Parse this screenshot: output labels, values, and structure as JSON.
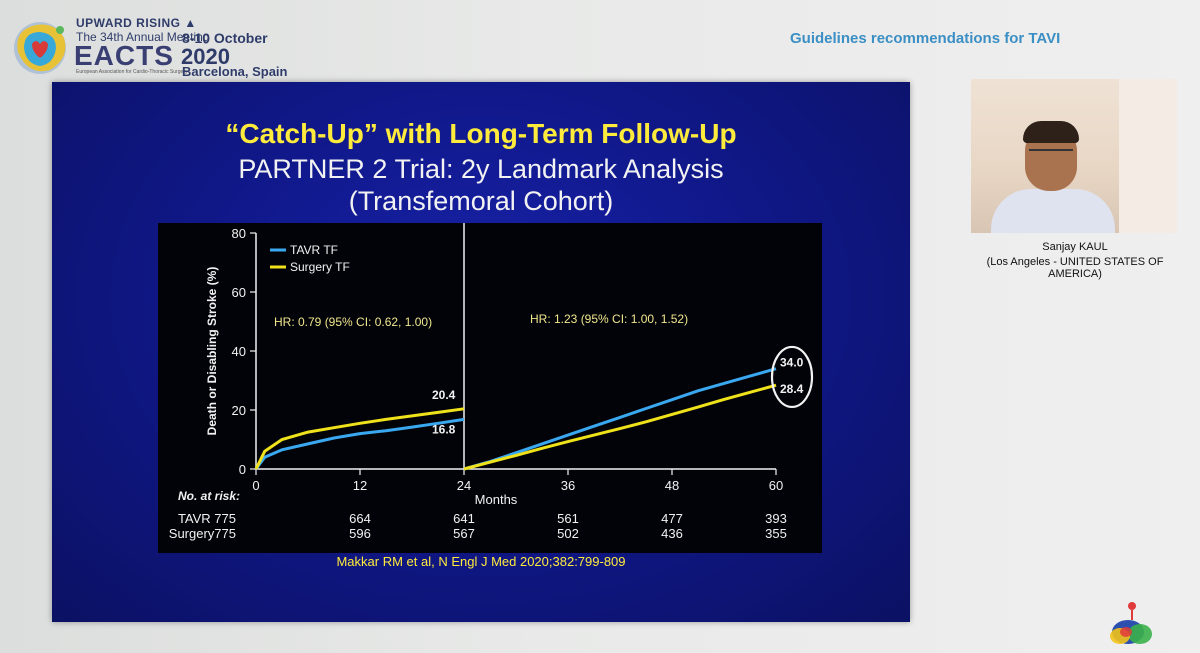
{
  "header": {
    "upward_rising": "UPWARD RISING ▲",
    "meeting": "The 34th Annual Meeting",
    "org": "EACTS",
    "org_full": "European Association for Cardio-Thoracic Surgery",
    "dates": "8-10 October",
    "year": "2020",
    "location": "Barcelona, Spain",
    "session_title": "Guidelines recommendations for TAVI"
  },
  "slide": {
    "title_line1": "“Catch-Up” with Long-Term Follow-Up",
    "title_line2": "PARTNER 2 Trial: 2y Landmark Analysis",
    "title_line3": "(Transfemoral Cohort)",
    "citation": "Makkar RM et al, N Engl J Med 2020;382:799-809"
  },
  "speaker": {
    "name": "Sanjay KAUL",
    "affiliation": "(Los Angeles - UNITED STATES OF AMERICA)"
  },
  "colors": {
    "tavr": "#3aa8f0",
    "surgery": "#f0e21a",
    "slide_title": "#ffeb3b"
  },
  "chart_data": {
    "type": "line",
    "ylabel": "Death or Disabling Stroke (%)",
    "xlabel": "Months",
    "ylim": [
      0,
      80
    ],
    "xlim": [
      0,
      60
    ],
    "y_ticks": [
      "0",
      "20",
      "40",
      "60",
      "80"
    ],
    "x_ticks": [
      "0",
      "12",
      "24",
      "36",
      "48",
      "60"
    ],
    "landmark_month": 24,
    "legend_placement": "top-left",
    "series": [
      {
        "name": "TAVR TF",
        "color": "#3aa8f0",
        "segment1": {
          "x": [
            0,
            1,
            3,
            6,
            9,
            12,
            15,
            18,
            21,
            24
          ],
          "y": [
            0,
            4,
            6.5,
            8.5,
            10.5,
            12,
            13,
            14.2,
            15.5,
            16.8
          ]
        },
        "segment2": {
          "x": [
            24,
            27,
            30,
            33,
            36,
            39,
            42,
            45,
            48,
            51,
            54,
            57,
            60
          ],
          "y": [
            0,
            2.5,
            5.5,
            8.5,
            11.5,
            14.5,
            17.5,
            20.5,
            23.5,
            26.5,
            29,
            31.5,
            34.0
          ]
        }
      },
      {
        "name": "Surgery TF",
        "color": "#f0e21a",
        "segment1": {
          "x": [
            0,
            1,
            3,
            6,
            9,
            12,
            15,
            18,
            21,
            24
          ],
          "y": [
            0,
            6,
            10,
            12.5,
            14,
            15.5,
            16.8,
            18,
            19.2,
            20.4
          ]
        },
        "segment2": {
          "x": [
            24,
            27,
            30,
            33,
            36,
            39,
            42,
            45,
            48,
            51,
            54,
            57,
            60
          ],
          "y": [
            0,
            2.3,
            4.6,
            7,
            9.3,
            11.5,
            13.7,
            16,
            18.5,
            21,
            23.6,
            26,
            28.4
          ]
        }
      }
    ],
    "data_labels": [
      {
        "series": "Surgery TF",
        "x": 24,
        "y": 20.4,
        "text": "20.4"
      },
      {
        "series": "TAVR TF",
        "x": 24,
        "y": 16.8,
        "text": "16.8"
      },
      {
        "series": "TAVR TF",
        "x": 60,
        "y": 34.0,
        "text": "34.0"
      },
      {
        "series": "Surgery TF",
        "x": 60,
        "y": 28.4,
        "text": "28.4"
      }
    ],
    "annotations": [
      {
        "text": "HR: 0.79 (95% CI: 0.62, 1.00)",
        "period": "0-24 months"
      },
      {
        "text": "HR: 1.23 (95% CI: 1.00, 1.52)",
        "period": "24-60 months"
      }
    ],
    "risk_table": {
      "title": "No. at risk:",
      "rows": [
        {
          "label": "TAVR 775",
          "values": [
            "664",
            "641",
            "561",
            "477",
            "393"
          ]
        },
        {
          "label": "Surgery775",
          "values": [
            "596",
            "567",
            "502",
            "436",
            "355"
          ]
        }
      ]
    }
  }
}
